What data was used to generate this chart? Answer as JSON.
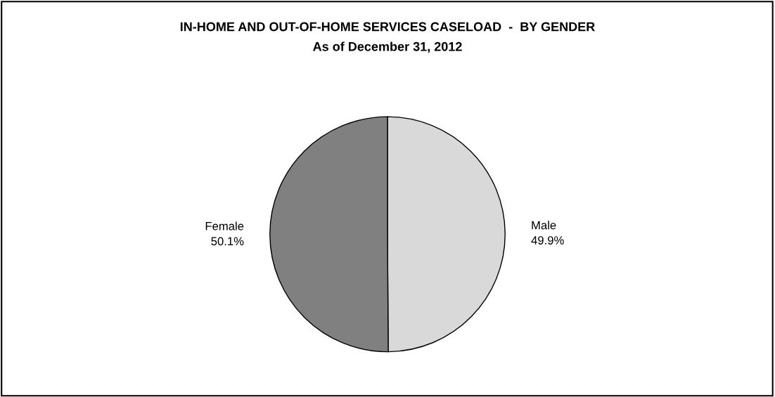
{
  "chart_data": {
    "type": "pie",
    "title": "IN-HOME AND OUT-OF-HOME SERVICES CASELOAD  -  BY GENDER",
    "subtitle": "As of December 31, 2012",
    "categories": [
      "Male",
      "Female"
    ],
    "values": [
      49.9,
      50.1
    ],
    "colors": [
      "#d9d9d9",
      "#808080"
    ],
    "value_labels": [
      "49.9%",
      "50.1%"
    ],
    "legend": false
  }
}
